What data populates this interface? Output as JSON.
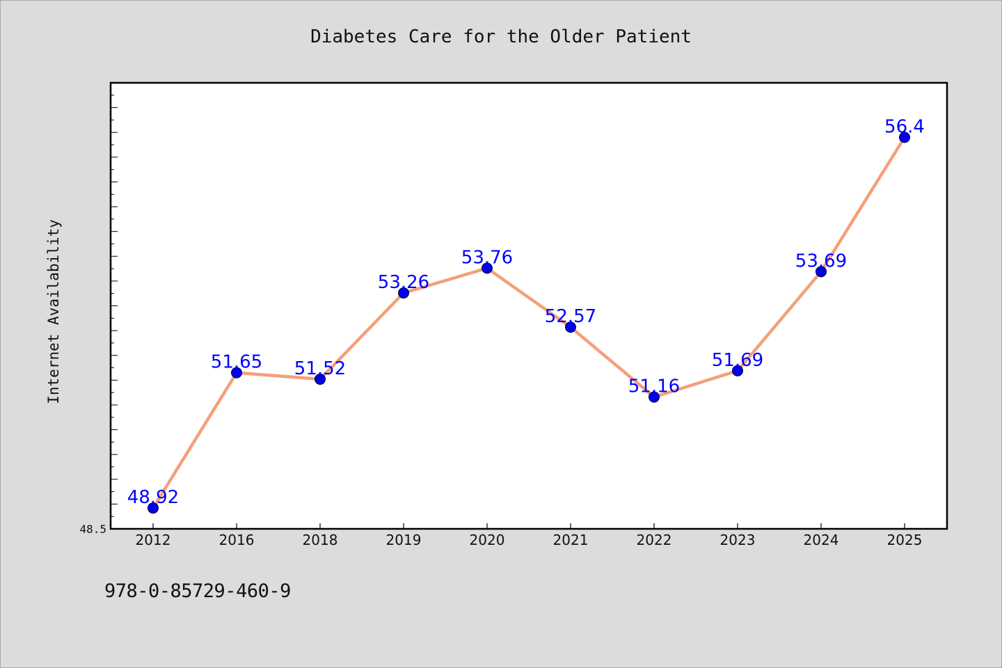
{
  "chart_data": {
    "type": "line",
    "title": "Diabetes Care for the Older Patient",
    "xlabel": "",
    "ylabel": "Internet Availability",
    "categories": [
      "2012",
      "2016",
      "2018",
      "2019",
      "2020",
      "2021",
      "2022",
      "2023",
      "2024",
      "2025"
    ],
    "series": [
      {
        "values": [
          48.92,
          51.65,
          51.52,
          53.26,
          53.76,
          52.57,
          51.16,
          51.69,
          53.69,
          56.4
        ]
      }
    ],
    "y_tick_label": "48.5",
    "ylim": [
      48.5,
      57.5
    ],
    "grid": false,
    "legend": "none",
    "colors": {
      "line": "#f4a07a",
      "marker": "#0000ee",
      "label": "#0000ff",
      "background": "#dcdcdc",
      "plot": "#ffffff"
    }
  },
  "footer": {
    "isbn": "978-0-85729-460-9"
  }
}
